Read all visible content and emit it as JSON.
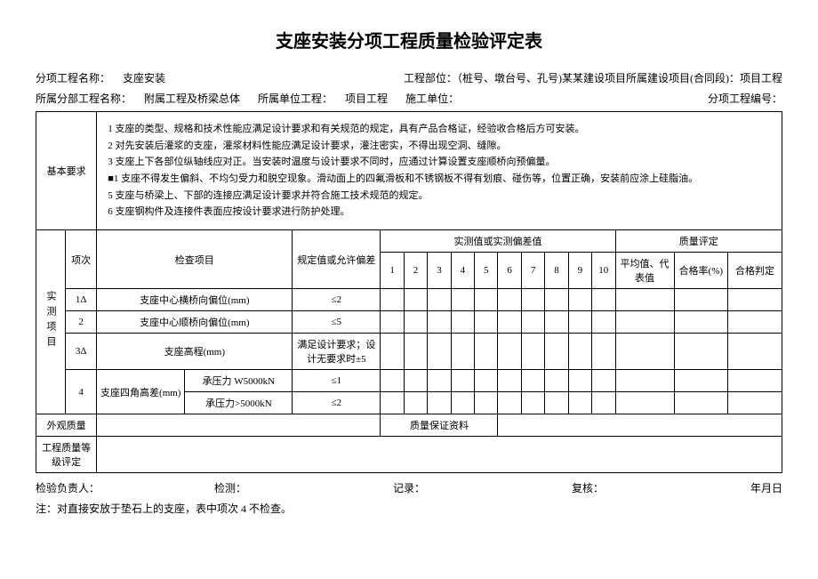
{
  "title": "支座安装分项工程质量检验评定表",
  "meta": {
    "row1": {
      "label1": "分项工程名称：",
      "val1": "支座安装",
      "label2": "工程部位：（桩号、墩台号、孔号)某某建设项目所属建设项目(合同段)：项目工程"
    },
    "row2": {
      "label1": "所属分部工程名称：",
      "val1": "附属工程及桥梁总体",
      "label2": "所属单位工程：",
      "val2": "项目工程",
      "label3": "施工单位：",
      "label4": "分项工程编号："
    }
  },
  "basic_req_label": "基本要求",
  "basic_req_text": "1 支座的类型、规格和技术性能应满足设计要求和有关规范的规定，具有产品合格证，经验收合格后方可安装。\n2 对先安装后灌浆的支座，灌浆材料性能应满足设计要求，灌注密实，不得出现空洞、缝隙。\n3 支座上下各部位纵轴线应对正。当安装时温度与设计要求不同时，应通过计算设置支座顺桥向预偏量。\n■1 支座不得发生偏斜、不均匀受力和脱空现象。滑动面上的四氟滑板和不锈钢板不得有划痕、碰伤等，位置正确，安装前应涂上硅脂油。\n5 支座与桥梁上、下部的连接应满足设计要求并符合施工技术规范的规定。\n6 支座钢构件及连接件表面应按设计要求进行防护处理。",
  "headers": {
    "side": "实测项目",
    "col_idx": "项次",
    "col_item": "检查项目",
    "col_spec": "规定值或允许偏差",
    "col_measured": "实测值或实测偏差值",
    "col_quality": "质量评定",
    "nums": [
      "1",
      "2",
      "3",
      "4",
      "5",
      "6",
      "7",
      "8",
      "9",
      "10"
    ],
    "col_avg": "平均值、代表值",
    "col_pass": "合格率(%)",
    "col_judge": "合格判定"
  },
  "rows": [
    {
      "idx": "1Δ",
      "item": "支座中心横桥向偏位(mm)",
      "spec": "≤2"
    },
    {
      "idx": "2",
      "item": "支座中心顺桥向偏位(mm)",
      "spec": "≤5"
    },
    {
      "idx": "3Δ",
      "item": "支座高程(mm)",
      "spec": "满足设计要求；设计无要求时±5"
    }
  ],
  "row4": {
    "idx": "4",
    "item": "支座四角高差(mm)",
    "sub1": "承压力 W5000kN",
    "spec1": "≤1",
    "sub2": "承压力>5000kN",
    "spec2": "≤2"
  },
  "appearance": {
    "label": "外观质量",
    "right": "质量保证资料"
  },
  "grade": {
    "label": "工程质量等级评定"
  },
  "footer": {
    "c1": "检验负责人：",
    "c2": "检测：",
    "c3": "记录：",
    "c4": "复核：",
    "c5": "年月日"
  },
  "note": "注：对直接安放于垫石上的支座，表中项次 4 不检查。"
}
